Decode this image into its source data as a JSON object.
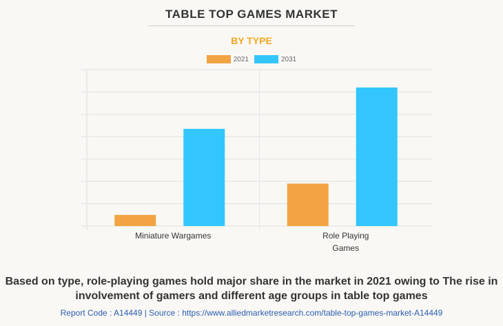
{
  "chart_data": {
    "type": "bar",
    "title": "TABLE TOP GAMES MARKET",
    "subtitle": "BY TYPE",
    "categories": [
      [
        "Miniature Wargames"
      ],
      [
        "Role Playing",
        "Games"
      ]
    ],
    "series": [
      {
        "name": "2021",
        "color": "#f2a444",
        "values": [
          0.5,
          1.9
        ]
      },
      {
        "name": "2031",
        "color": "#33c6fd",
        "values": [
          4.35,
          6.2
        ]
      }
    ],
    "ylim": [
      0,
      7
    ],
    "grid": true,
    "legend": "top-center",
    "xlabel": "",
    "ylabel": ""
  },
  "summary": "Based on type, role-playing games hold major share in the market in 2021 owing to The rise in involvement of gamers and different age groups in table top games",
  "footer": "Report Code : A14449  |  Source : https://www.alliedmarketresearch.com/table-top-games-market-A14449"
}
